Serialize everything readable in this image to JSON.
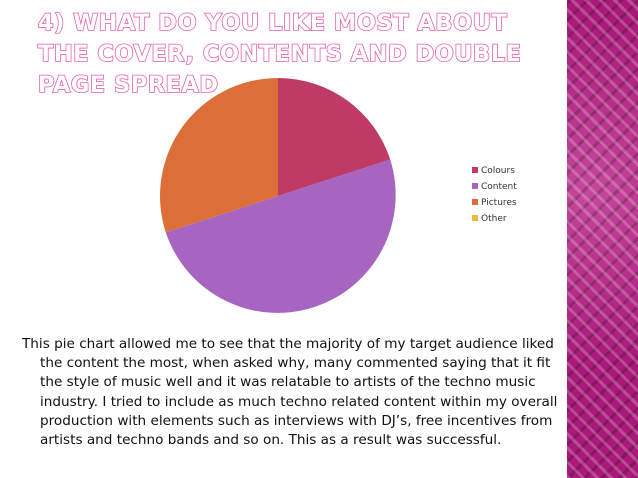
{
  "slide": {
    "title": "4) What do you like most about the cover, contents and double page spread",
    "body": "This pie chart allowed me to see that the majority of my target audience liked the content the most, when asked why, many commented saying that it fit the style of music well and it was relatable to artists of the techno music industry. I tried to include as much techno related content within my overall production with elements such as interviews with DJ’s, free incentives from artists and techno bands and so on. This as a result was successful."
  },
  "chart_data": {
    "type": "pie",
    "categories": [
      "Colours",
      "Content",
      "Pictures",
      "Other"
    ],
    "values": [
      20,
      50,
      30,
      0
    ],
    "colors": [
      "#bf3b66",
      "#a665c1",
      "#dc6e3a",
      "#f1b942"
    ],
    "legend_position": "right",
    "start_angle_deg": 0,
    "direction": "clockwise"
  }
}
